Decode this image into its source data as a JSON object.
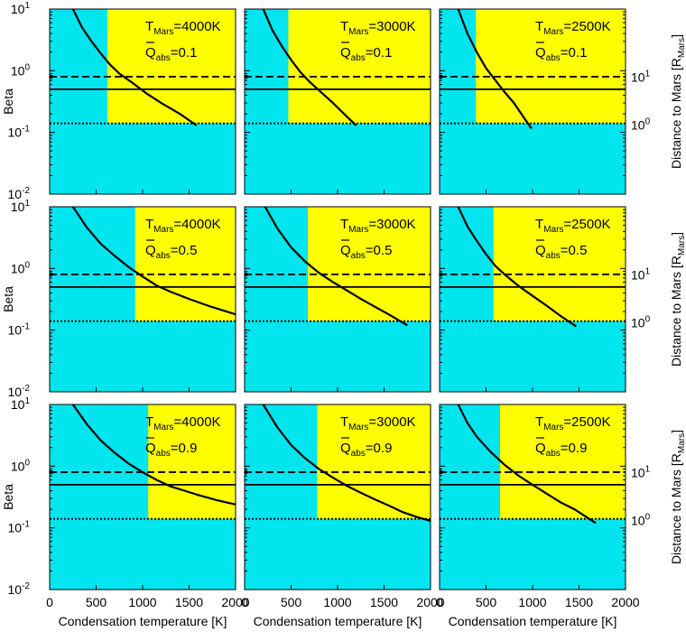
{
  "chart_data": {
    "type": "line",
    "xlabel": "Condensation temperature [K]",
    "ylabel_left": "Beta",
    "ylabel_right_prefix": "Distance to Mars [R",
    "ylabel_right_sub": "Mars",
    "ylabel_right_suffix": "]",
    "x_range": [
      0,
      2000
    ],
    "y_range": [
      0.01,
      10
    ],
    "y_scale": "log",
    "x_tick_labels": [
      "0",
      "500",
      "1000",
      "1500",
      "2000"
    ],
    "x_tick_values": [
      0,
      500,
      1000,
      1500,
      2000
    ],
    "y_tick_values": [
      0.01,
      0.1,
      1,
      10
    ],
    "y_tick_bases": [
      "10",
      "10",
      "10",
      "10"
    ],
    "y_tick_exps": [
      "-2",
      "-1",
      "0",
      "1"
    ],
    "right_tick_bases": [
      "10",
      "10"
    ],
    "right_tick_exps": [
      "0",
      "1"
    ],
    "right_tick_beta": [
      0.132,
      0.78
    ],
    "region_colors": {
      "unbound": "#00e5ee",
      "bound": "#ffff00"
    },
    "line_colors": "#000000",
    "horizontal_lines": [
      {
        "style": "dashed",
        "beta": 0.8
      },
      {
        "style": "solid",
        "beta": 0.5
      },
      {
        "style": "dotted",
        "beta": 0.14
      }
    ],
    "q_prefix": "Q",
    "q_sub": "abs",
    "t_prefix": "T",
    "t_sub": "Mars",
    "panels": [
      {
        "t_value": "=4000K",
        "q_value": "=0.1",
        "yellow_x": 620,
        "yellow_beta": 0.14,
        "curve": {
          "x": [
            250,
            350,
            450,
            550,
            650,
            750,
            900,
            1050,
            1200,
            1400,
            1580
          ],
          "beta": [
            10.0,
            5.0,
            3.0,
            1.9,
            1.25,
            0.9,
            0.62,
            0.42,
            0.3,
            0.2,
            0.13
          ]
        }
      },
      {
        "t_value": "=3000K",
        "q_value": "=0.1",
        "yellow_x": 470,
        "yellow_beta": 0.14,
        "curve": {
          "x": [
            200,
            300,
            400,
            500,
            600,
            700,
            800,
            950,
            1100,
            1200
          ],
          "beta": [
            10.0,
            4.5,
            2.5,
            1.5,
            0.95,
            0.66,
            0.48,
            0.3,
            0.18,
            0.13
          ]
        }
      },
      {
        "t_value": "=2500K",
        "q_value": "=0.1",
        "yellow_x": 390,
        "yellow_beta": 0.14,
        "curve": {
          "x": [
            200,
            300,
            400,
            500,
            600,
            700,
            800,
            900,
            990
          ],
          "beta": [
            10.0,
            4.0,
            2.0,
            1.1,
            0.7,
            0.45,
            0.3,
            0.18,
            0.115
          ]
        }
      },
      {
        "t_value": "=4000K",
        "q_value": "=0.5",
        "yellow_x": 920,
        "yellow_beta": 0.14,
        "curve": {
          "x": [
            250,
            400,
            550,
            700,
            850,
            1000,
            1150,
            1300,
            1500,
            1700,
            2000
          ],
          "beta": [
            10.0,
            4.6,
            2.5,
            1.6,
            1.05,
            0.74,
            0.53,
            0.42,
            0.32,
            0.25,
            0.18
          ]
        }
      },
      {
        "t_value": "=3000K",
        "q_value": "=0.5",
        "yellow_x": 680,
        "yellow_beta": 0.14,
        "curve": {
          "x": [
            220,
            350,
            500,
            650,
            800,
            950,
            1100,
            1250,
            1400,
            1550,
            1750
          ],
          "beta": [
            10.0,
            4.5,
            2.2,
            1.3,
            0.85,
            0.6,
            0.44,
            0.32,
            0.24,
            0.18,
            0.12
          ]
        }
      },
      {
        "t_value": "=2500K",
        "q_value": "=0.5",
        "yellow_x": 580,
        "yellow_beta": 0.14,
        "curve": {
          "x": [
            200,
            300,
            400,
            500,
            600,
            700,
            850,
            1000,
            1150,
            1300,
            1470
          ],
          "beta": [
            10.0,
            4.8,
            2.8,
            1.7,
            1.1,
            0.8,
            0.52,
            0.36,
            0.25,
            0.17,
            0.115
          ]
        }
      },
      {
        "t_value": "=4000K",
        "q_value": "=0.9",
        "yellow_x": 1060,
        "yellow_beta": 0.14,
        "curve": {
          "x": [
            250,
            400,
            550,
            700,
            850,
            1000,
            1150,
            1300,
            1450,
            1600,
            1800,
            2000
          ],
          "beta": [
            10.0,
            4.8,
            2.6,
            1.65,
            1.1,
            0.8,
            0.6,
            0.47,
            0.4,
            0.34,
            0.28,
            0.24
          ]
        }
      },
      {
        "t_value": "=3000K",
        "q_value": "=0.9",
        "yellow_x": 780,
        "yellow_beta": 0.14,
        "curve": {
          "x": [
            200,
            350,
            500,
            650,
            800,
            950,
            1100,
            1250,
            1400,
            1550,
            1700,
            1850,
            2000
          ],
          "beta": [
            10.0,
            4.3,
            2.2,
            1.35,
            0.9,
            0.65,
            0.48,
            0.37,
            0.29,
            0.23,
            0.18,
            0.15,
            0.13
          ]
        }
      },
      {
        "t_value": "=2500K",
        "q_value": "=0.9",
        "yellow_x": 650,
        "yellow_beta": 0.14,
        "curve": {
          "x": [
            200,
            300,
            400,
            550,
            700,
            850,
            1000,
            1150,
            1300,
            1450,
            1680
          ],
          "beta": [
            10.0,
            5.0,
            3.0,
            1.7,
            1.05,
            0.7,
            0.5,
            0.36,
            0.26,
            0.2,
            0.12
          ]
        }
      }
    ]
  }
}
